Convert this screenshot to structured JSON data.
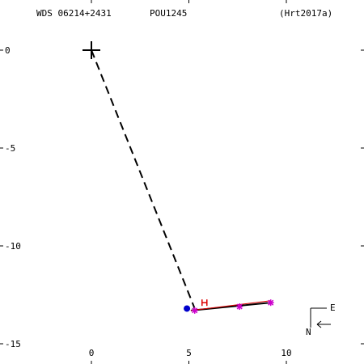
{
  "header": {
    "wds_id": "WDS 06214+2431",
    "discoverer": "POU1245",
    "reference": "(Hrt2017a)"
  },
  "chart_data": {
    "type": "scatter",
    "title": "",
    "xlabel": "",
    "ylabel": "",
    "xlim": [
      -4.5,
      14
    ],
    "ylim": [
      -16,
      2.5
    ],
    "x_ticks": [
      {
        "value": 0,
        "label": "0"
      },
      {
        "value": 5,
        "label": "5"
      },
      {
        "value": 10,
        "label": "10"
      }
    ],
    "y_ticks": [
      {
        "value": 0,
        "label": "0"
      },
      {
        "value": -5,
        "label": "-5"
      },
      {
        "value": -10,
        "label": "-10"
      },
      {
        "value": -15,
        "label": "-15"
      }
    ],
    "primary_star": {
      "x": 0,
      "y": 0,
      "marker": "plus"
    },
    "connector_line": {
      "from": [
        0,
        0
      ],
      "to": [
        5.3,
        -13.2
      ],
      "style": "dashed"
    },
    "fit_line": {
      "from": [
        5.1,
        -13.3
      ],
      "to": [
        9.2,
        -12.9
      ],
      "color": "#000000"
    },
    "trend_line": {
      "from": [
        5.1,
        -13.3
      ],
      "to": [
        9.2,
        -12.8
      ],
      "color": "#dd0000"
    },
    "series": [
      {
        "marker": "asterisk",
        "color": "#cc00cc",
        "points": [
          [
            5.3,
            -13.3
          ],
          [
            7.6,
            -13.1
          ],
          [
            9.2,
            -12.9
          ]
        ]
      },
      {
        "marker": "circle",
        "color": "#0000cc",
        "points": [
          [
            4.9,
            -13.2
          ]
        ]
      },
      {
        "marker": "bracket",
        "color": "#dd0000",
        "points": [
          [
            5.8,
            -12.9
          ]
        ]
      }
    ],
    "orientation_labels": {
      "east": "E",
      "north": "N"
    }
  }
}
